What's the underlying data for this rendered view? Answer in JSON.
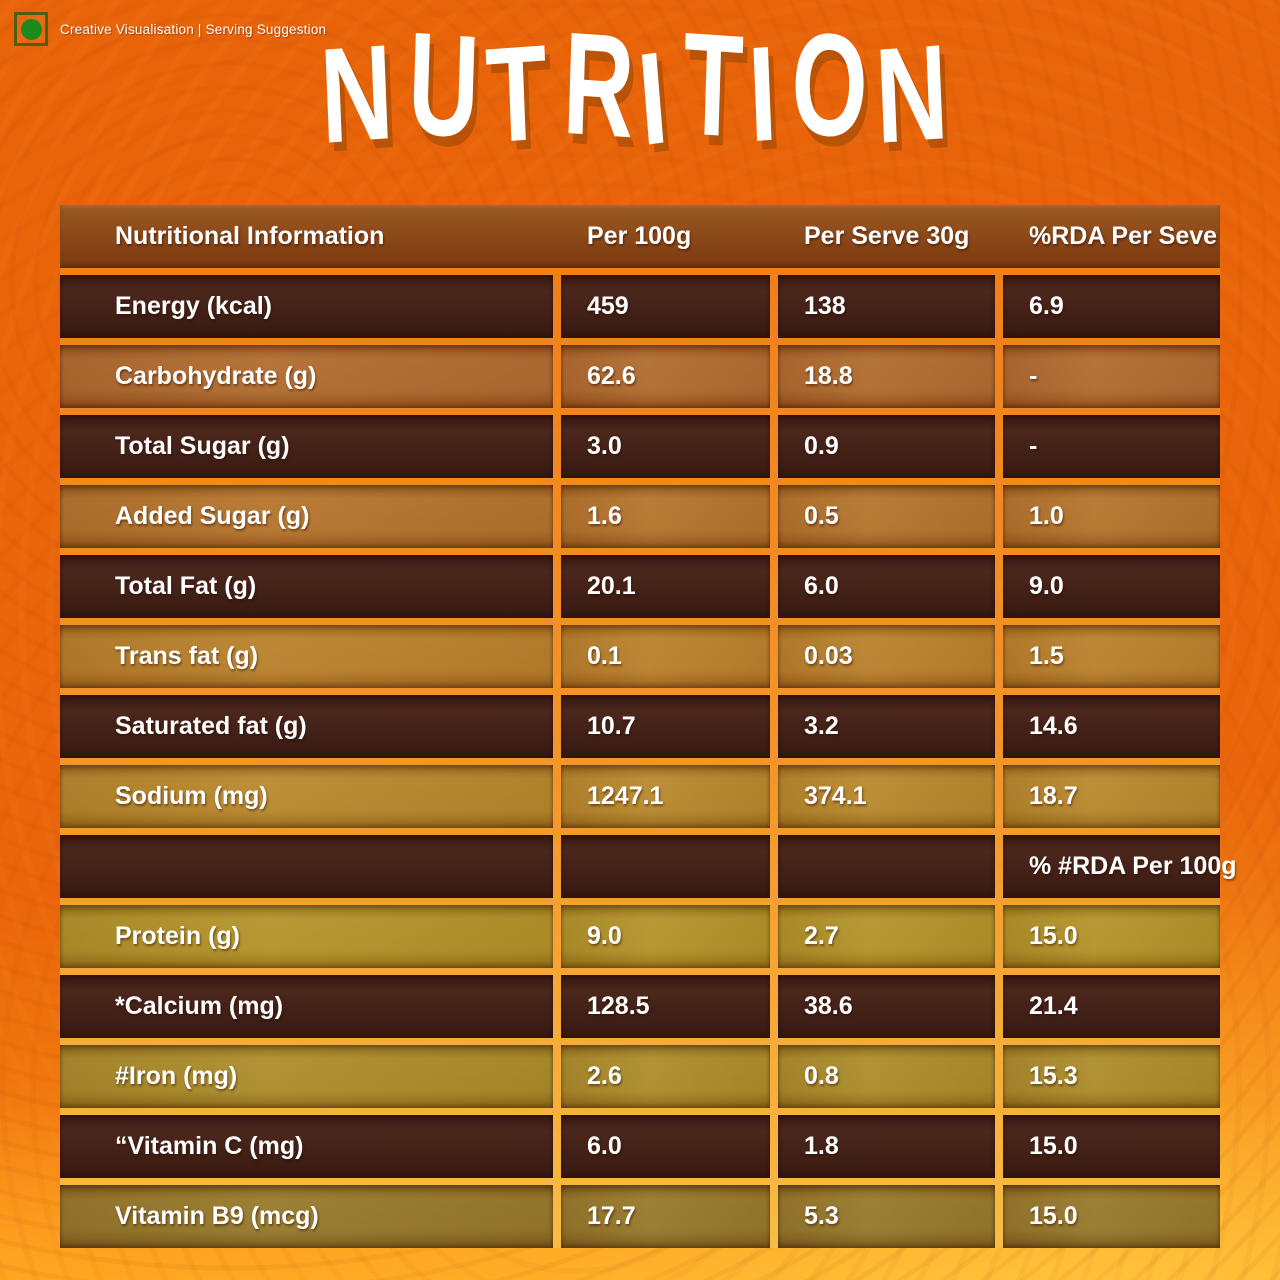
{
  "page": {
    "badge_label": "Creative Visualisation | Serving Suggestion",
    "title": "NUTRITION"
  },
  "colors": {
    "background_orange": "#E96409",
    "background_bottom_gold": "#FFAD22",
    "header_brown": "#8A4718",
    "row_dark": "#421E15",
    "grid_gap_orange": "#F3962A",
    "veg_mark_green": "#1C8A1C",
    "text_white": "#FFFFFF"
  },
  "table": {
    "columns": [
      "Nutritional Information",
      "Per 100g",
      "Per Serve 30g",
      "%RDA Per Seve"
    ],
    "rows": [
      {
        "label": "Energy (kcal)",
        "per100g": "459",
        "perServe": "138",
        "rda": "6.9",
        "dark": true,
        "bg": "#421E15"
      },
      {
        "label": "Carbohydrate (g)",
        "per100g": "62.6",
        "perServe": "18.8",
        "rda": "-",
        "dark": false,
        "bg": "#A85E22"
      },
      {
        "label": "Total Sugar (g)",
        "per100g": "3.0",
        "perServe": "0.9",
        "rda": "-",
        "dark": true,
        "bg": "#421E15"
      },
      {
        "label": "Added Sugar (g)",
        "per100g": "1.6",
        "perServe": "0.5",
        "rda": "1.0",
        "dark": false,
        "bg": "#AC6820"
      },
      {
        "label": "Total Fat (g)",
        "per100g": "20.1",
        "perServe": "6.0",
        "rda": "9.0",
        "dark": true,
        "bg": "#421E15"
      },
      {
        "label": "Trans fat (g)",
        "per100g": "0.1",
        "perServe": "0.03",
        "rda": "1.5",
        "dark": false,
        "bg": "#B1761F"
      },
      {
        "label": "Saturated fat (g)",
        "per100g": "10.7",
        "perServe": "3.2",
        "rda": "14.6",
        "dark": true,
        "bg": "#421E15"
      },
      {
        "label": "Sodium (mg)",
        "per100g": "1247.1",
        "perServe": "374.1",
        "rda": "18.7",
        "dark": false,
        "bg": "#B07E20"
      },
      {
        "label": "",
        "per100g": "",
        "perServe": "",
        "rda": "% #RDA Per 100g",
        "dark": true,
        "bg": "#421E15"
      },
      {
        "label": "Protein (g)",
        "per100g": "9.0",
        "perServe": "2.7",
        "rda": "15.0",
        "dark": false,
        "bg": "#AA8A1C"
      },
      {
        "label": "*Calcium (mg)",
        "per100g": "128.5",
        "perServe": "38.6",
        "rda": "21.4",
        "dark": true,
        "bg": "#421E15"
      },
      {
        "label": "#Iron (mg)",
        "per100g": "2.6",
        "perServe": "0.8",
        "rda": "15.3",
        "dark": false,
        "bg": "#A2831E"
      },
      {
        "label": "“Vitamin C (mg)",
        "per100g": "6.0",
        "perServe": "1.8",
        "rda": "15.0",
        "dark": true,
        "bg": "#421E15"
      },
      {
        "label": "Vitamin B9 (mcg)",
        "per100g": "17.7",
        "perServe": "5.3",
        "rda": "15.0",
        "dark": false,
        "bg": "#8B6D1E"
      }
    ]
  }
}
